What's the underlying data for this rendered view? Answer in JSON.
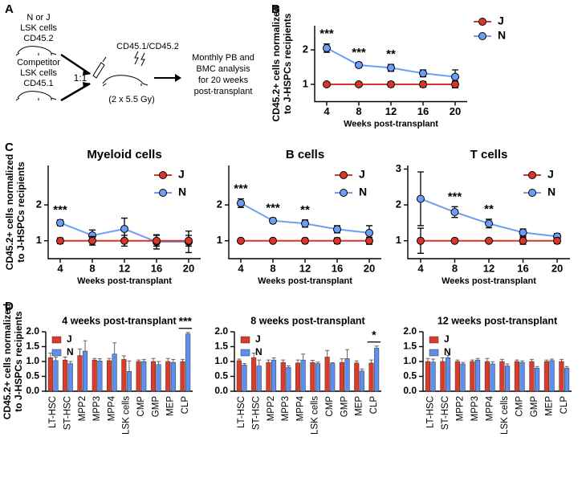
{
  "panel_labels": [
    "A",
    "B",
    "C",
    "D"
  ],
  "diagram": {
    "donor": [
      "N or J",
      "LSK cells",
      "CD45.2"
    ],
    "competitor": [
      "Competitor",
      "LSK cells",
      "CD45.1"
    ],
    "ratio": "1:1",
    "recipient": "CD45.1/CD45.2",
    "irradiation": "(2 x 5.5 Gy)",
    "analysis": [
      "Monthly PB and",
      "BMC analysis",
      "for 20 weeks",
      "post-transplant"
    ]
  },
  "chart_data": [
    {
      "type": "line",
      "y_label": [
        "CD45.2+ cells normalized",
        "to J-HSPCs recipients"
      ],
      "x_label": "Weeks post-transplant",
      "x": [
        4,
        8,
        12,
        16,
        20
      ],
      "xlim": [
        2.5,
        21.5
      ],
      "xticks": [
        4,
        8,
        12,
        16,
        20
      ],
      "ylim": [
        0.5,
        2.7
      ],
      "yticks": [
        1,
        2
      ],
      "legend": "right",
      "series": [
        {
          "name": "J",
          "color": "#d7372b",
          "values": [
            1,
            1,
            1,
            1,
            1
          ],
          "errors": [
            0.04,
            0.05,
            0.07,
            0.08,
            0.1
          ]
        },
        {
          "name": "N",
          "color": "#6d9ef5",
          "values": [
            2.05,
            1.56,
            1.48,
            1.32,
            1.22
          ],
          "errors": [
            0.12,
            0.07,
            0.1,
            0.1,
            0.2
          ]
        }
      ],
      "annotations": [
        "***",
        "***",
        "**",
        null,
        null
      ]
    },
    {
      "type": "line",
      "title": "Myeloid cells",
      "y_label": [
        "CD45.2+ cells normalized",
        "to J-HSPCs recipients"
      ],
      "x_label": "Weeks post-transplant",
      "x": [
        4,
        8,
        12,
        16,
        20
      ],
      "xlim": [
        2.5,
        21.5
      ],
      "xticks": [
        4,
        8,
        12,
        16,
        20
      ],
      "ylim": [
        0.5,
        3.1
      ],
      "yticks": [
        1,
        2
      ],
      "legend": "upper right",
      "series": [
        {
          "name": "J",
          "color": "#d7372b",
          "values": [
            1,
            1,
            1,
            1,
            1
          ],
          "errors": [
            0.08,
            0.12,
            0.15,
            0.15,
            0.15
          ]
        },
        {
          "name": "N",
          "color": "#6d9ef5",
          "values": [
            1.5,
            1.15,
            1.33,
            0.97,
            0.97
          ],
          "errors": [
            0.08,
            0.15,
            0.3,
            0.2,
            0.3
          ]
        }
      ],
      "annotations": [
        "***",
        null,
        null,
        null,
        null
      ]
    },
    {
      "type": "line",
      "title": "B cells",
      "x_label": "Weeks post-transplant",
      "x": [
        4,
        8,
        12,
        16,
        20
      ],
      "xlim": [
        2.5,
        21.5
      ],
      "xticks": [
        4,
        8,
        12,
        16,
        20
      ],
      "ylim": [
        0.5,
        3.1
      ],
      "yticks": [
        1,
        2
      ],
      "legend": "upper right",
      "series": [
        {
          "name": "J",
          "color": "#d7372b",
          "values": [
            1,
            1,
            1,
            1,
            1
          ],
          "errors": [
            0.04,
            0.05,
            0.07,
            0.08,
            0.1
          ]
        },
        {
          "name": "N",
          "color": "#6d9ef5",
          "values": [
            2.05,
            1.56,
            1.48,
            1.32,
            1.22
          ],
          "errors": [
            0.12,
            0.07,
            0.1,
            0.1,
            0.2
          ]
        }
      ],
      "annotations": [
        "***",
        "***",
        "**",
        null,
        null
      ]
    },
    {
      "type": "line",
      "title": "T cells",
      "x_label": "Weeks post-transplant",
      "x": [
        4,
        8,
        12,
        16,
        20
      ],
      "xlim": [
        2.5,
        21.5
      ],
      "xticks": [
        4,
        8,
        12,
        16,
        20
      ],
      "ylim": [
        0.5,
        3.1
      ],
      "yticks": [
        1,
        2,
        3
      ],
      "legend": "upper right",
      "series": [
        {
          "name": "J",
          "color": "#d7372b",
          "values": [
            1,
            1,
            1,
            1,
            1
          ],
          "errors": [
            0.35,
            0.03,
            0.03,
            0.1,
            0.08
          ]
        },
        {
          "name": "N",
          "color": "#6d9ef5",
          "values": [
            2.17,
            1.8,
            1.48,
            1.23,
            1.12
          ],
          "errors": [
            0.75,
            0.15,
            0.12,
            0.1,
            0.08
          ]
        }
      ],
      "annotations": [
        null,
        "***",
        "**",
        null,
        null
      ]
    },
    {
      "type": "bar",
      "title": "4 weeks post-transplant",
      "y_label": [
        "CD45.2+ cells normalized",
        "to J-HSPCs recipients"
      ],
      "categories": [
        "LT-HSC",
        "ST-HSC",
        "MPP2",
        "MPP3",
        "MPP4",
        "LSK cells",
        "CMP",
        "GMP",
        "MEP",
        "CLP"
      ],
      "ylim": [
        0,
        2
      ],
      "yticks": [
        {
          "value": 0,
          "label": "0.0"
        },
        0.5,
        {
          "value": 1,
          "label": "1.0"
        },
        1.5,
        {
          "value": 2,
          "label": "2.0"
        }
      ],
      "legend": "upper left",
      "series": [
        {
          "name": "J",
          "color": "#dc3b2c",
          "values": [
            1.13,
            1.05,
            1.2,
            1.05,
            1.03,
            1.07,
            1.0,
            1.0,
            1.0,
            1.0
          ],
          "errors": [
            0.15,
            0.1,
            0.22,
            0.05,
            0.07,
            0.12,
            0.05,
            0.1,
            0.1,
            0.07
          ]
        },
        {
          "name": "N",
          "color": "#5d8fef",
          "values": [
            1.03,
            0.93,
            1.35,
            1.02,
            1.25,
            0.67,
            1.0,
            0.9,
            0.97,
            1.93
          ],
          "errors": [
            0.12,
            0.07,
            0.35,
            0.07,
            0.38,
            0.35,
            0.07,
            0.1,
            0.1,
            0.05
          ]
        }
      ],
      "annotations": [
        null,
        null,
        null,
        null,
        null,
        null,
        null,
        null,
        null,
        "***"
      ]
    },
    {
      "type": "bar",
      "title": "8 weeks post-transplant",
      "categories": [
        "LT-HSC",
        "ST-HSC",
        "MPP2",
        "MPP3",
        "MPP4",
        "LSK cells",
        "CMP",
        "GMP",
        "MEP",
        "CLP"
      ],
      "ylim": [
        0,
        2
      ],
      "yticks": [
        {
          "value": 0,
          "label": "0.0"
        },
        0.5,
        {
          "value": 1,
          "label": "1.0"
        },
        1.5,
        {
          "value": 2,
          "label": "2.0"
        }
      ],
      "legend": "upper left",
      "series": [
        {
          "name": "J",
          "color": "#dc3b2c",
          "values": [
            1.03,
            1.13,
            0.97,
            0.97,
            0.95,
            0.97,
            1.15,
            0.97,
            0.95,
            0.95
          ],
          "errors": [
            0.05,
            0.15,
            0.08,
            0.08,
            0.1,
            0.07,
            0.22,
            0.12,
            0.07,
            0.1
          ]
        },
        {
          "name": "N",
          "color": "#5d8fef",
          "values": [
            0.88,
            0.85,
            1.05,
            0.8,
            1.05,
            0.93,
            0.93,
            1.1,
            0.68,
            1.45
          ],
          "errors": [
            0.05,
            0.2,
            0.07,
            0.05,
            0.2,
            0.05,
            0.03,
            0.3,
            0.07,
            0.07
          ]
        }
      ],
      "annotations": [
        null,
        null,
        null,
        null,
        null,
        null,
        null,
        null,
        null,
        "*"
      ]
    },
    {
      "type": "bar",
      "title": "12 weeks post-transplant",
      "categories": [
        "LT-HSC",
        "ST-HSC",
        "MPP2",
        "MPP3",
        "MPP4",
        "LSK cells",
        "CMP",
        "GMP",
        "MEP",
        "CLP"
      ],
      "ylim": [
        0,
        2
      ],
      "yticks": [
        {
          "value": 0,
          "label": "0.0"
        },
        0.5,
        {
          "value": 1,
          "label": "1.0"
        },
        1.5,
        {
          "value": 2,
          "label": "2.0"
        }
      ],
      "legend": "upper left",
      "series": [
        {
          "name": "J",
          "color": "#dc3b2c",
          "values": [
            1.0,
            1.0,
            1.0,
            1.0,
            1.0,
            1.0,
            1.0,
            1.0,
            1.0,
            1.0
          ],
          "errors": [
            0.1,
            0.12,
            0.05,
            0.05,
            0.1,
            0.07,
            0.05,
            0.07,
            0.05,
            0.07
          ]
        },
        {
          "name": "N",
          "color": "#5d8fef",
          "values": [
            0.98,
            1.13,
            0.92,
            1.05,
            0.92,
            0.85,
            0.97,
            0.78,
            1.03,
            0.78
          ],
          "errors": [
            0.1,
            0.08,
            0.05,
            0.05,
            0.07,
            0.07,
            0.05,
            0.05,
            0.05,
            0.05
          ]
        }
      ],
      "annotations": [
        null,
        null,
        null,
        null,
        null,
        null,
        null,
        null,
        null,
        null
      ]
    }
  ]
}
